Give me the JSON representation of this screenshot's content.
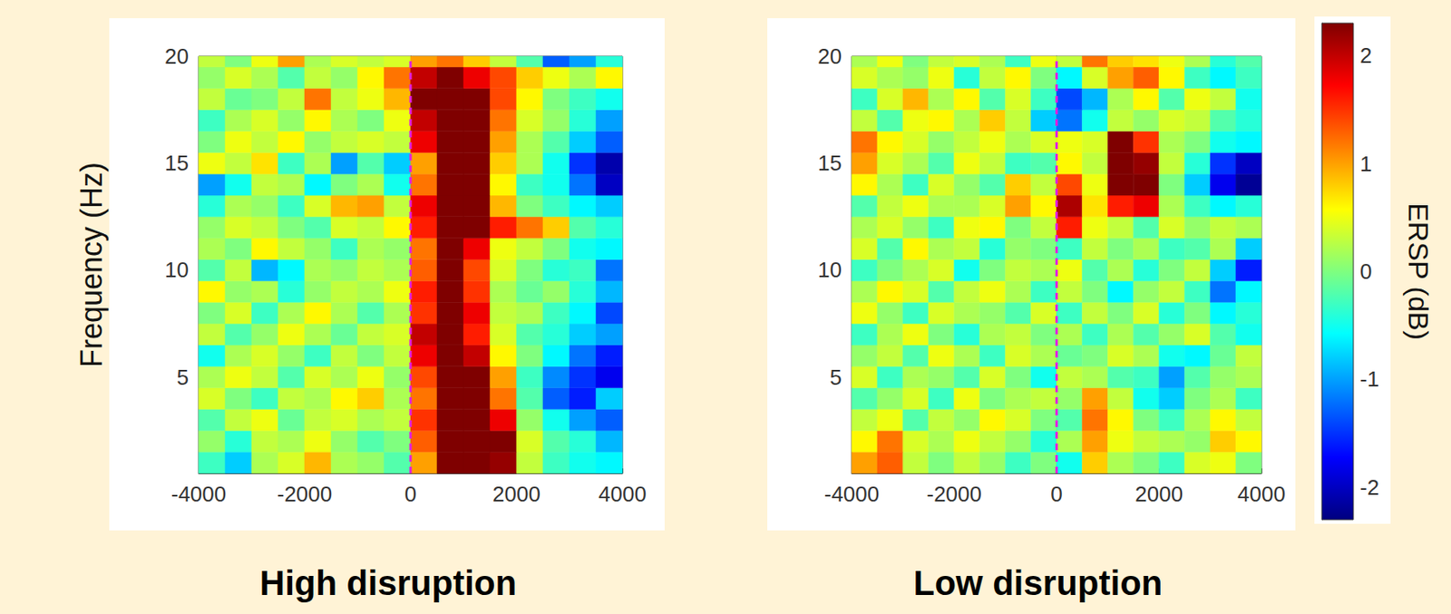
{
  "chart_data": [
    {
      "type": "heatmap",
      "title": "High disruption",
      "y_label": "Frequency (Hz)",
      "x": [
        -3750,
        -3250,
        -2750,
        -2250,
        -1750,
        -1250,
        -750,
        -250,
        250,
        750,
        1250,
        1750,
        2250,
        2750,
        3250,
        3750
      ],
      "y": [
        1,
        2,
        3,
        4,
        5,
        6,
        7,
        8,
        9,
        10,
        11,
        12,
        13,
        14,
        15,
        16,
        17,
        18,
        19,
        20
      ],
      "values": [
        [
          -0.3,
          -0.8,
          0.2,
          0.4,
          0.9,
          0.2,
          0.1,
          -0.2,
          1.0,
          2.3,
          2.3,
          2.2,
          0.3,
          -0.3,
          -0.5,
          -0.6
        ],
        [
          0.1,
          -0.4,
          0.3,
          0.2,
          0.5,
          0.1,
          -0.2,
          0.0,
          1.3,
          2.3,
          2.3,
          2.3,
          0.4,
          -0.2,
          -0.4,
          -0.9
        ],
        [
          -0.2,
          0.3,
          0.5,
          -0.1,
          0.3,
          0.4,
          0.2,
          0.3,
          1.5,
          2.3,
          2.3,
          1.8,
          0.1,
          -0.5,
          -1.0,
          -1.3
        ],
        [
          0.4,
          0.0,
          -0.3,
          0.3,
          0.2,
          0.6,
          0.8,
          0.2,
          1.2,
          2.3,
          2.3,
          1.2,
          -0.2,
          -1.3,
          -1.6,
          -0.8
        ],
        [
          0.2,
          0.5,
          0.3,
          -0.2,
          0.4,
          0.2,
          0.5,
          0.1,
          1.4,
          2.3,
          2.3,
          1.0,
          -0.3,
          -1.1,
          -1.5,
          -1.8
        ],
        [
          -0.5,
          0.2,
          0.4,
          0.1,
          -0.3,
          0.3,
          0.0,
          0.3,
          1.8,
          2.3,
          2.0,
          0.6,
          0.0,
          -0.6,
          -1.2,
          -1.6
        ],
        [
          0.3,
          -0.2,
          0.1,
          0.5,
          0.2,
          -0.1,
          0.3,
          0.4,
          2.0,
          2.3,
          1.6,
          0.4,
          -0.2,
          -0.4,
          -0.8,
          -1.0
        ],
        [
          0.0,
          0.4,
          -0.3,
          0.2,
          0.6,
          0.2,
          -0.2,
          0.2,
          1.5,
          2.3,
          1.8,
          0.3,
          0.2,
          -0.3,
          -0.6,
          -1.4
        ],
        [
          0.6,
          0.1,
          0.2,
          -0.4,
          0.1,
          0.3,
          0.2,
          0.5,
          1.6,
          2.3,
          1.5,
          0.2,
          -0.1,
          0.1,
          -0.4,
          -0.9
        ],
        [
          -0.2,
          0.3,
          -0.9,
          -0.6,
          0.2,
          0.1,
          0.3,
          0.2,
          1.3,
          2.3,
          1.4,
          0.4,
          0.0,
          -0.4,
          -0.3,
          -1.2
        ],
        [
          0.2,
          0.0,
          0.6,
          0.3,
          0.1,
          -0.3,
          0.2,
          0.1,
          1.2,
          2.3,
          1.8,
          0.5,
          0.3,
          0.0,
          -0.5,
          -0.6
        ],
        [
          0.1,
          0.4,
          0.3,
          0.0,
          -0.2,
          0.4,
          0.3,
          0.6,
          1.6,
          2.3,
          2.3,
          1.6,
          1.2,
          0.8,
          -0.2,
          -0.4
        ],
        [
          -0.4,
          0.2,
          0.1,
          -0.3,
          0.4,
          0.9,
          1.0,
          0.3,
          1.8,
          2.3,
          2.3,
          0.9,
          0.0,
          -0.3,
          -0.6,
          -0.8
        ],
        [
          -1.0,
          -0.5,
          0.3,
          0.2,
          -0.6,
          0.0,
          0.2,
          -0.5,
          1.2,
          2.3,
          2.3,
          0.6,
          -0.3,
          -0.5,
          -1.2,
          -2.0
        ],
        [
          0.5,
          0.3,
          0.7,
          -0.3,
          0.2,
          -1.0,
          -0.2,
          -0.8,
          1.0,
          2.3,
          2.3,
          0.8,
          0.2,
          -0.5,
          -1.5,
          -2.1
        ],
        [
          0.0,
          0.5,
          0.3,
          0.6,
          0.1,
          0.3,
          0.4,
          0.3,
          1.8,
          2.3,
          2.3,
          1.0,
          0.2,
          -0.2,
          -0.8,
          -1.3
        ],
        [
          -0.3,
          0.2,
          0.4,
          0.1,
          0.6,
          0.2,
          0.0,
          0.5,
          2.0,
          2.3,
          2.3,
          1.2,
          0.4,
          0.1,
          -0.4,
          -1.0
        ],
        [
          0.3,
          -0.1,
          0.0,
          0.3,
          1.2,
          0.3,
          0.5,
          0.9,
          2.3,
          2.3,
          2.3,
          1.4,
          0.6,
          0.0,
          -0.3,
          -0.5
        ],
        [
          0.1,
          0.4,
          0.2,
          -0.2,
          0.3,
          0.1,
          0.6,
          1.2,
          2.0,
          2.3,
          1.8,
          1.4,
          0.8,
          0.5,
          0.2,
          0.6
        ],
        [
          0.3,
          0.0,
          0.5,
          1.0,
          0.2,
          0.4,
          0.3,
          0.4,
          1.0,
          1.2,
          0.8,
          0.3,
          -0.2,
          -1.3,
          -1.0,
          -0.4
        ]
      ],
      "xlim": [
        -4000,
        4000
      ],
      "xticks": [
        -4000,
        -2000,
        0,
        2000,
        4000
      ],
      "ylim": [
        0.5,
        20
      ],
      "yticks": [
        5,
        10,
        15,
        20
      ],
      "event_x": 0
    },
    {
      "type": "heatmap",
      "title": "Low disruption",
      "x": [
        -3750,
        -3250,
        -2750,
        -2250,
        -1750,
        -1250,
        -750,
        -250,
        250,
        750,
        1250,
        1750,
        2250,
        2750,
        3250,
        3750
      ],
      "y": [
        1,
        2,
        3,
        4,
        5,
        6,
        7,
        8,
        9,
        10,
        11,
        12,
        13,
        14,
        15,
        16,
        17,
        18,
        19,
        20
      ],
      "values": [
        [
          1.0,
          1.3,
          0.3,
          0.0,
          0.3,
          0.1,
          -0.3,
          0.0,
          -0.5,
          0.8,
          0.2,
          0.0,
          -0.3,
          0.4,
          0.5,
          0.0
        ],
        [
          0.6,
          1.2,
          0.4,
          0.2,
          0.5,
          0.3,
          0.1,
          -0.4,
          0.2,
          1.0,
          0.5,
          0.3,
          0.2,
          0.1,
          0.8,
          0.6
        ],
        [
          0.3,
          0.5,
          -0.2,
          0.3,
          0.1,
          0.6,
          0.4,
          0.0,
          -0.2,
          1.2,
          0.6,
          0.0,
          -0.3,
          0.2,
          0.6,
          0.3
        ],
        [
          -0.2,
          0.1,
          0.4,
          -0.3,
          0.5,
          0.0,
          0.2,
          0.3,
          0.1,
          1.0,
          0.3,
          -0.5,
          -0.8,
          0.0,
          0.2,
          -0.3
        ],
        [
          0.4,
          -0.3,
          0.2,
          0.1,
          -0.2,
          0.4,
          0.0,
          -0.5,
          0.3,
          0.2,
          -0.2,
          -0.3,
          -1.0,
          -0.2,
          0.1,
          0.2
        ],
        [
          0.1,
          0.3,
          -0.2,
          0.5,
          0.2,
          -0.3,
          0.4,
          0.2,
          -0.1,
          0.0,
          0.4,
          0.2,
          -0.5,
          -0.6,
          -0.1,
          0.3
        ],
        [
          -0.3,
          0.2,
          0.5,
          0.0,
          -0.4,
          0.2,
          0.3,
          0.0,
          0.2,
          -0.3,
          0.2,
          -0.2,
          0.1,
          0.4,
          -0.2,
          -0.5
        ],
        [
          0.5,
          0.1,
          -0.3,
          0.4,
          0.2,
          0.1,
          -0.2,
          0.4,
          -0.3,
          0.3,
          0.0,
          0.4,
          -0.4,
          0.0,
          -0.6,
          -0.4
        ],
        [
          0.2,
          0.6,
          0.4,
          -0.2,
          0.3,
          0.5,
          0.2,
          -0.3,
          0.3,
          0.0,
          -0.6,
          0.1,
          0.3,
          -0.3,
          -1.2,
          -0.6
        ],
        [
          -0.3,
          0.0,
          0.2,
          0.4,
          -0.5,
          0.0,
          0.3,
          0.2,
          0.5,
          -0.2,
          0.2,
          -0.4,
          0.0,
          0.3,
          -0.8,
          -1.6
        ],
        [
          0.4,
          -0.2,
          0.6,
          0.2,
          0.3,
          -0.4,
          0.1,
          0.0,
          -0.3,
          0.3,
          0.0,
          0.2,
          -0.3,
          -0.2,
          0.2,
          -0.8
        ],
        [
          0.2,
          0.4,
          0.1,
          -0.3,
          0.5,
          0.6,
          0.0,
          0.3,
          1.6,
          0.5,
          0.3,
          -0.2,
          0.4,
          0.1,
          0.3,
          0.2
        ],
        [
          -0.2,
          0.3,
          0.5,
          0.2,
          0.2,
          0.4,
          1.0,
          0.6,
          2.1,
          0.7,
          1.6,
          1.8,
          0.2,
          -0.3,
          -0.6,
          -0.4
        ],
        [
          0.6,
          0.2,
          -0.3,
          0.4,
          0.1,
          -0.2,
          0.8,
          0.3,
          1.4,
          0.5,
          2.3,
          2.3,
          0.0,
          -0.8,
          -1.8,
          -2.2
        ],
        [
          1.0,
          0.4,
          0.2,
          -0.2,
          0.5,
          0.3,
          -0.3,
          -0.2,
          0.6,
          0.3,
          2.3,
          2.2,
          0.3,
          -0.4,
          -1.5,
          -2.0
        ],
        [
          1.2,
          0.6,
          0.4,
          0.1,
          0.3,
          0.5,
          0.2,
          0.4,
          0.5,
          0.4,
          2.3,
          1.5,
          0.2,
          0.0,
          -0.5,
          -0.6
        ],
        [
          0.3,
          -0.2,
          0.5,
          0.6,
          0.2,
          0.8,
          0.3,
          -0.8,
          -1.2,
          -0.5,
          0.3,
          0.1,
          0.4,
          0.3,
          -0.2,
          -0.4
        ],
        [
          -0.3,
          0.4,
          0.9,
          0.2,
          0.6,
          -0.2,
          0.4,
          -0.3,
          -1.4,
          -0.9,
          0.2,
          0.6,
          -0.2,
          0.5,
          0.3,
          -0.5
        ],
        [
          0.4,
          0.2,
          0.1,
          0.5,
          -0.4,
          0.3,
          0.6,
          0.0,
          -0.6,
          0.4,
          1.0,
          1.3,
          0.6,
          -0.3,
          -0.6,
          -0.3
        ],
        [
          0.2,
          0.5,
          0.0,
          0.3,
          0.4,
          0.2,
          -0.3,
          0.5,
          0.3,
          1.2,
          0.8,
          0.7,
          0.5,
          0.2,
          -0.4,
          -0.2
        ]
      ],
      "xlim": [
        -4000,
        4000
      ],
      "xticks": [
        -4000,
        -2000,
        0,
        2000,
        4000
      ],
      "ylim": [
        0.5,
        20
      ],
      "yticks": [
        5,
        10,
        15,
        20
      ],
      "event_x": 0,
      "colorbar": {
        "label": "ERSP (dB)",
        "lim": [
          -2.3,
          2.3
        ],
        "ticks": [
          -2,
          -1,
          0,
          1,
          2
        ]
      }
    }
  ]
}
